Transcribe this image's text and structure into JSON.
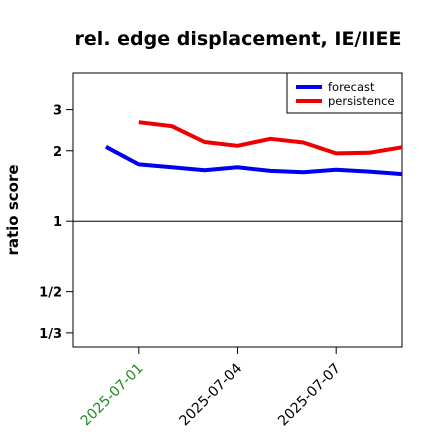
{
  "chart_data": {
    "type": "line",
    "title": "rel. edge displacement, IE/IIEE",
    "xlabel": "",
    "ylabel": "ratio score",
    "y_scale": "log",
    "ylim": [
      0.29,
      4.3
    ],
    "x_dates": [
      "2025-06-30",
      "2025-07-01",
      "2025-07-02",
      "2025-07-03",
      "2025-07-04",
      "2025-07-05",
      "2025-07-06",
      "2025-07-07",
      "2025-07-08",
      "2025-07-09"
    ],
    "x_range": [
      "2025-06-29",
      "2025-07-09"
    ],
    "x_ticks": [
      {
        "date": "2025-07-01",
        "label": "2025-07-01",
        "color": "#228B22"
      },
      {
        "date": "2025-07-04",
        "label": "2025-07-04",
        "color": "#000000"
      },
      {
        "date": "2025-07-07",
        "label": "2025-07-07",
        "color": "#000000"
      }
    ],
    "y_ticks": [
      {
        "value": 3,
        "label": "3"
      },
      {
        "value": 2,
        "label": "2"
      },
      {
        "value": 1,
        "label": "1"
      },
      {
        "value": 0.5,
        "label": "1/2"
      },
      {
        "value": 0.3333,
        "label": "1/3"
      }
    ],
    "reference_line": 1,
    "legend_position": "top-right",
    "series": [
      {
        "name": "forecast",
        "color": "#0000ee",
        "values": [
          2.08,
          1.75,
          1.7,
          1.65,
          1.7,
          1.64,
          1.62,
          1.66,
          1.63,
          1.59
        ]
      },
      {
        "name": "persistence",
        "color": "#ee0000",
        "values": [
          null,
          2.65,
          2.55,
          2.18,
          2.1,
          2.25,
          2.17,
          1.95,
          1.96,
          2.07
        ]
      }
    ]
  }
}
